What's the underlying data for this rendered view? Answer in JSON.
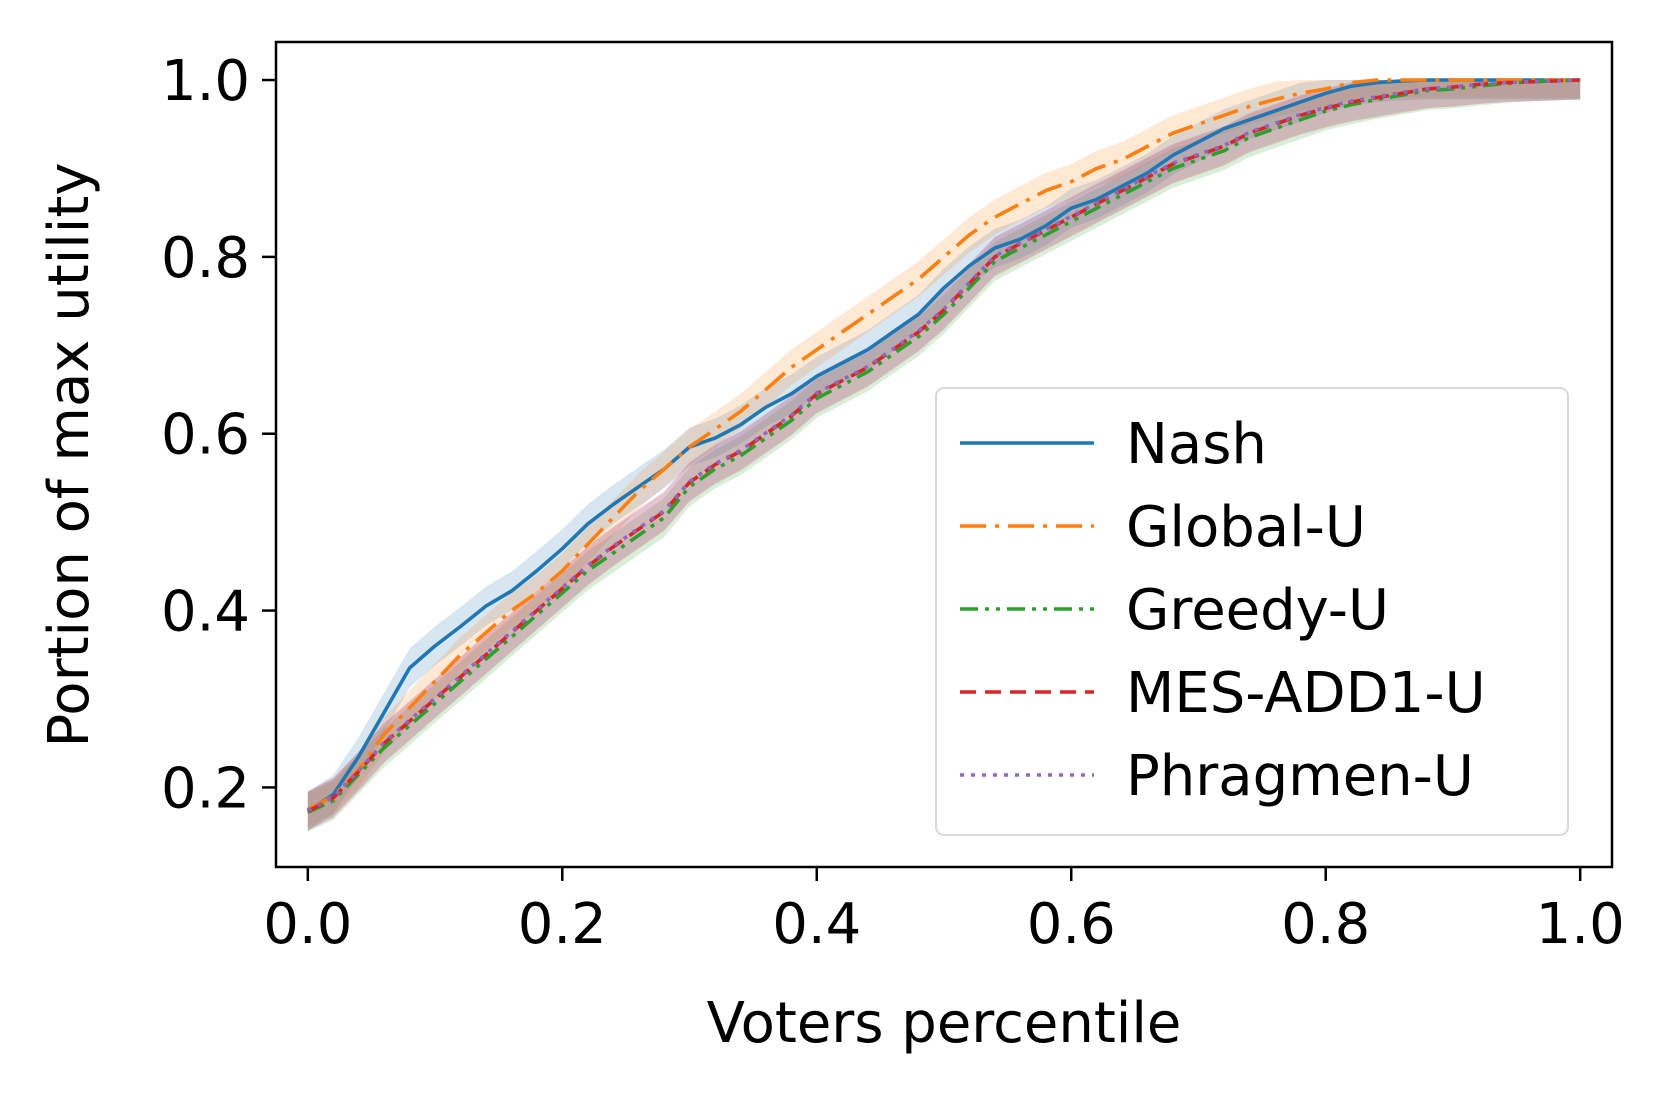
{
  "chart_data": {
    "type": "line",
    "title": "",
    "xlabel": "Voters percentile",
    "ylabel": "Portion of max utility",
    "xlim": [
      -0.025,
      1.025
    ],
    "ylim": [
      0.11,
      1.043
    ],
    "xticks": [
      0.0,
      0.2,
      0.4,
      0.6,
      0.8,
      1.0
    ],
    "yticks": [
      0.2,
      0.4,
      0.6,
      0.8,
      1.0
    ],
    "xtick_labels": [
      "0.0",
      "0.2",
      "0.4",
      "0.6",
      "0.8",
      "1.0"
    ],
    "ytick_labels": [
      "0.2",
      "0.4",
      "0.6",
      "0.8",
      "1.0"
    ],
    "grid": false,
    "legend_position": "lower-right",
    "x": [
      0.0,
      0.02,
      0.04,
      0.06,
      0.08,
      0.1,
      0.12,
      0.14,
      0.16,
      0.18,
      0.2,
      0.22,
      0.24,
      0.26,
      0.28,
      0.3,
      0.32,
      0.34,
      0.36,
      0.38,
      0.4,
      0.42,
      0.44,
      0.46,
      0.48,
      0.5,
      0.52,
      0.54,
      0.56,
      0.58,
      0.6,
      0.62,
      0.64,
      0.66,
      0.68,
      0.7,
      0.72,
      0.74,
      0.76,
      0.78,
      0.8,
      0.82,
      0.84,
      0.86,
      0.88,
      0.9,
      0.92,
      0.94,
      0.96,
      0.98,
      1.0
    ],
    "series": [
      {
        "name": "Nash",
        "color": "#1f77b4",
        "dash": "solid",
        "band": 0.022,
        "values": [
          0.173,
          0.192,
          0.235,
          0.285,
          0.335,
          0.36,
          0.382,
          0.405,
          0.422,
          0.445,
          0.47,
          0.498,
          0.52,
          0.54,
          0.56,
          0.585,
          0.595,
          0.61,
          0.63,
          0.645,
          0.665,
          0.68,
          0.695,
          0.715,
          0.735,
          0.765,
          0.79,
          0.81,
          0.82,
          0.835,
          0.855,
          0.865,
          0.88,
          0.895,
          0.915,
          0.93,
          0.945,
          0.955,
          0.965,
          0.975,
          0.985,
          0.993,
          0.997,
          0.999,
          1.0,
          1.0,
          1.0,
          1.0,
          1.0,
          1.0,
          1.0
        ]
      },
      {
        "name": "Global-U",
        "color": "#ff7f0e",
        "dash": "dashdot",
        "band": 0.02,
        "values": [
          0.175,
          0.19,
          0.22,
          0.26,
          0.29,
          0.32,
          0.35,
          0.375,
          0.4,
          0.42,
          0.445,
          0.475,
          0.505,
          0.535,
          0.56,
          0.585,
          0.605,
          0.625,
          0.65,
          0.675,
          0.695,
          0.715,
          0.735,
          0.755,
          0.775,
          0.8,
          0.825,
          0.845,
          0.86,
          0.875,
          0.885,
          0.9,
          0.91,
          0.925,
          0.94,
          0.95,
          0.96,
          0.97,
          0.978,
          0.985,
          0.99,
          0.997,
          1.0,
          1.0,
          1.0,
          1.0,
          1.0,
          1.0,
          1.0,
          1.0,
          1.0
        ]
      },
      {
        "name": "Greedy-U",
        "color": "#2ca02c",
        "dash": "dashdotdot",
        "band": 0.022,
        "values": [
          0.172,
          0.185,
          0.215,
          0.245,
          0.27,
          0.295,
          0.32,
          0.345,
          0.37,
          0.395,
          0.42,
          0.445,
          0.465,
          0.485,
          0.505,
          0.54,
          0.56,
          0.575,
          0.595,
          0.615,
          0.64,
          0.655,
          0.67,
          0.69,
          0.71,
          0.735,
          0.765,
          0.795,
          0.81,
          0.825,
          0.84,
          0.855,
          0.87,
          0.885,
          0.9,
          0.91,
          0.92,
          0.935,
          0.945,
          0.955,
          0.965,
          0.972,
          0.978,
          0.983,
          0.988,
          0.99,
          0.993,
          0.996,
          0.998,
          0.999,
          1.0
        ]
      },
      {
        "name": "MES-ADD1-U",
        "color": "#d62728",
        "dash": "dashed",
        "band": 0.022,
        "values": [
          0.173,
          0.188,
          0.218,
          0.25,
          0.275,
          0.3,
          0.325,
          0.35,
          0.375,
          0.4,
          0.425,
          0.45,
          0.472,
          0.492,
          0.512,
          0.545,
          0.565,
          0.58,
          0.6,
          0.62,
          0.645,
          0.66,
          0.675,
          0.695,
          0.715,
          0.74,
          0.77,
          0.8,
          0.815,
          0.83,
          0.845,
          0.86,
          0.875,
          0.89,
          0.905,
          0.915,
          0.925,
          0.94,
          0.95,
          0.96,
          0.968,
          0.975,
          0.98,
          0.985,
          0.99,
          0.992,
          0.995,
          0.997,
          0.998,
          0.999,
          1.0
        ]
      },
      {
        "name": "Phragmen-U",
        "color": "#9467bd",
        "dash": "dotted",
        "band": 0.022,
        "values": [
          0.174,
          0.189,
          0.219,
          0.251,
          0.276,
          0.301,
          0.326,
          0.351,
          0.376,
          0.401,
          0.426,
          0.451,
          0.473,
          0.493,
          0.513,
          0.546,
          0.566,
          0.581,
          0.601,
          0.621,
          0.646,
          0.661,
          0.676,
          0.696,
          0.716,
          0.741,
          0.771,
          0.801,
          0.816,
          0.831,
          0.846,
          0.861,
          0.876,
          0.891,
          0.906,
          0.916,
          0.926,
          0.941,
          0.951,
          0.961,
          0.969,
          0.976,
          0.981,
          0.986,
          0.99,
          0.992,
          0.995,
          0.997,
          0.998,
          0.999,
          1.0
        ]
      }
    ]
  }
}
